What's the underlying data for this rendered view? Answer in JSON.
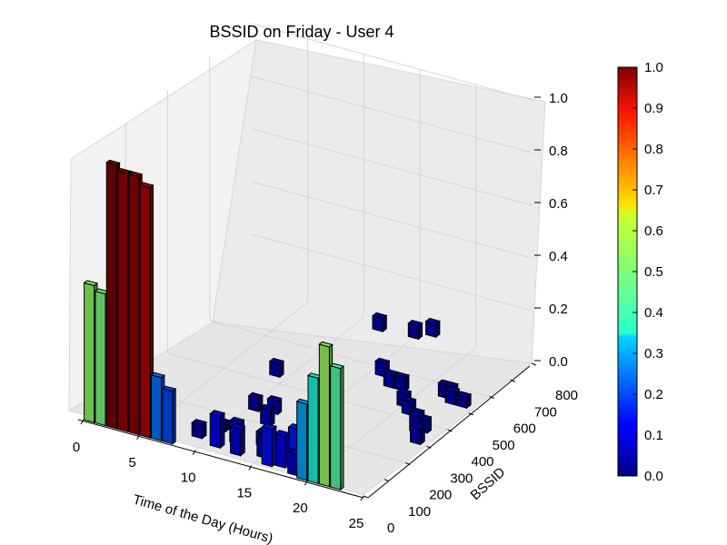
{
  "chart_data": {
    "type": "bar3d",
    "title": "BSSID on Friday - User 4",
    "xlabel": "Time of the Day (Hours)",
    "ylabel": "BSSID",
    "zlabel": "",
    "xlim": [
      0,
      25
    ],
    "ylim": [
      0,
      800
    ],
    "zlim": [
      0,
      1.0
    ],
    "xticks": [
      "0",
      "5",
      "10",
      "15",
      "20",
      "25"
    ],
    "yticks": [
      "0",
      "100",
      "200",
      "300",
      "400",
      "500",
      "600",
      "700",
      "800"
    ],
    "zticks": [
      "0.0",
      "0.2",
      "0.4",
      "0.6",
      "0.8",
      "1.0"
    ],
    "colorbar": {
      "colormap": "jet",
      "range": [
        0.0,
        1.0
      ],
      "ticks": [
        "0.0",
        "0.1",
        "0.2",
        "0.3",
        "0.4",
        "0.5",
        "0.6",
        "0.7",
        "0.8",
        "0.9",
        "1.0"
      ]
    },
    "bars_back_row": [
      {
        "x": 0.5,
        "bssid": 0,
        "value": 0.52
      },
      {
        "x": 1.5,
        "bssid": 0,
        "value": 0.5
      },
      {
        "x": 2.5,
        "bssid": 0,
        "value": 1.0
      },
      {
        "x": 3.5,
        "bssid": 0,
        "value": 0.98
      },
      {
        "x": 4.5,
        "bssid": 0,
        "value": 0.98
      },
      {
        "x": 5.5,
        "bssid": 0,
        "value": 0.95
      },
      {
        "x": 6.5,
        "bssid": 0,
        "value": 0.24
      },
      {
        "x": 7.5,
        "bssid": 0,
        "value": 0.2
      },
      {
        "x": 19.5,
        "bssid": 0,
        "value": 0.29
      },
      {
        "x": 20.5,
        "bssid": 0,
        "value": 0.4
      },
      {
        "x": 21.5,
        "bssid": 0,
        "value": 0.53
      },
      {
        "x": 22.5,
        "bssid": 0,
        "value": 0.46
      }
    ],
    "bars_low": [
      {
        "x": 9,
        "bssid": 60,
        "value": 0.05
      },
      {
        "x": 10,
        "bssid": 120,
        "value": 0.03
      },
      {
        "x": 11,
        "bssid": 40,
        "value": 0.12
      },
      {
        "x": 12,
        "bssid": 80,
        "value": 0.08
      },
      {
        "x": 13,
        "bssid": 30,
        "value": 0.1
      },
      {
        "x": 14,
        "bssid": 100,
        "value": 0.05
      },
      {
        "x": 15,
        "bssid": 50,
        "value": 0.07
      },
      {
        "x": 16,
        "bssid": 20,
        "value": 0.14
      },
      {
        "x": 17,
        "bssid": 30,
        "value": 0.12
      },
      {
        "x": 18,
        "bssid": 40,
        "value": 0.15
      },
      {
        "x": 18.5,
        "bssid": 10,
        "value": 0.08
      },
      {
        "x": 23,
        "bssid": 350,
        "value": 0.06
      },
      {
        "x": 24,
        "bssid": 300,
        "value": 0.06
      },
      {
        "x": 24,
        "bssid": 520,
        "value": 0.04
      }
    ],
    "bars_scattered": [
      {
        "x": 9,
        "bssid": 430,
        "value": 0.05
      },
      {
        "x": 16,
        "bssid": 800,
        "value": 0.05
      },
      {
        "x": 15,
        "bssid": 770,
        "value": 0.05
      },
      {
        "x": 12,
        "bssid": 760,
        "value": 0.05
      },
      {
        "x": 16,
        "bssid": 560,
        "value": 0.05
      },
      {
        "x": 17.5,
        "bssid": 520,
        "value": 0.05
      },
      {
        "x": 18.5,
        "bssid": 520,
        "value": 0.05
      },
      {
        "x": 22,
        "bssid": 540,
        "value": 0.05
      },
      {
        "x": 22.5,
        "bssid": 540,
        "value": 0.05
      },
      {
        "x": 23,
        "bssid": 520,
        "value": 0.05
      },
      {
        "x": 20,
        "bssid": 450,
        "value": 0.05
      },
      {
        "x": 21,
        "bssid": 420,
        "value": 0.05
      },
      {
        "x": 22.5,
        "bssid": 380,
        "value": 0.05
      },
      {
        "x": 23.5,
        "bssid": 360,
        "value": 0.05
      },
      {
        "x": 10.5,
        "bssid": 250,
        "value": 0.05
      },
      {
        "x": 12,
        "bssid": 260,
        "value": 0.05
      },
      {
        "x": 12.5,
        "bssid": 200,
        "value": 0.06
      }
    ]
  }
}
